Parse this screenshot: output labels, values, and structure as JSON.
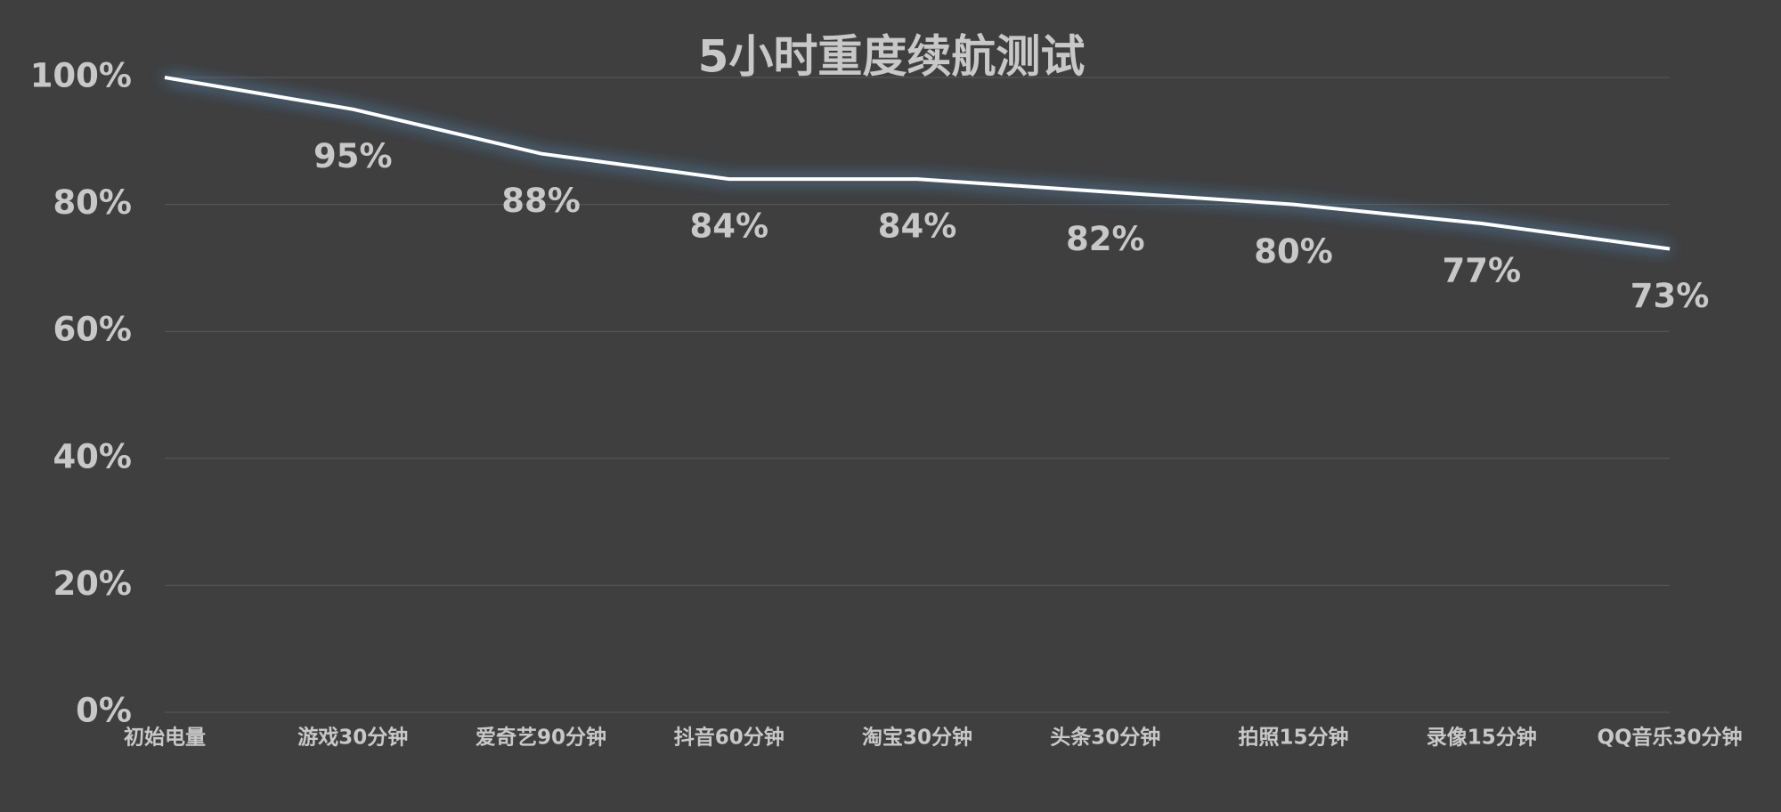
{
  "chart_data": {
    "type": "line",
    "title": "5小时重度续航测试",
    "categories": [
      "初始电量",
      "游戏30分钟",
      "爱奇艺90分钟",
      "抖音60分钟",
      "淘宝30分钟",
      "头条30分钟",
      "拍照15分钟",
      "录像15分钟",
      "QQ音乐30分钟"
    ],
    "values": [
      100,
      95,
      88,
      84,
      84,
      82,
      80,
      77,
      73
    ],
    "value_labels": [
      null,
      "95%",
      "88%",
      "84%",
      "84%",
      "82%",
      "80%",
      "77%",
      "73%"
    ],
    "color": "#ffffff",
    "ylim": [
      0,
      100
    ],
    "yticks": [
      {
        "value": 0,
        "label": "0%"
      },
      {
        "value": 20,
        "label": "20%"
      },
      {
        "value": 40,
        "label": "40%"
      },
      {
        "value": 60,
        "label": "60%"
      },
      {
        "value": 80,
        "label": "80%"
      },
      {
        "value": 100,
        "label": "100%"
      }
    ],
    "grid": true
  }
}
